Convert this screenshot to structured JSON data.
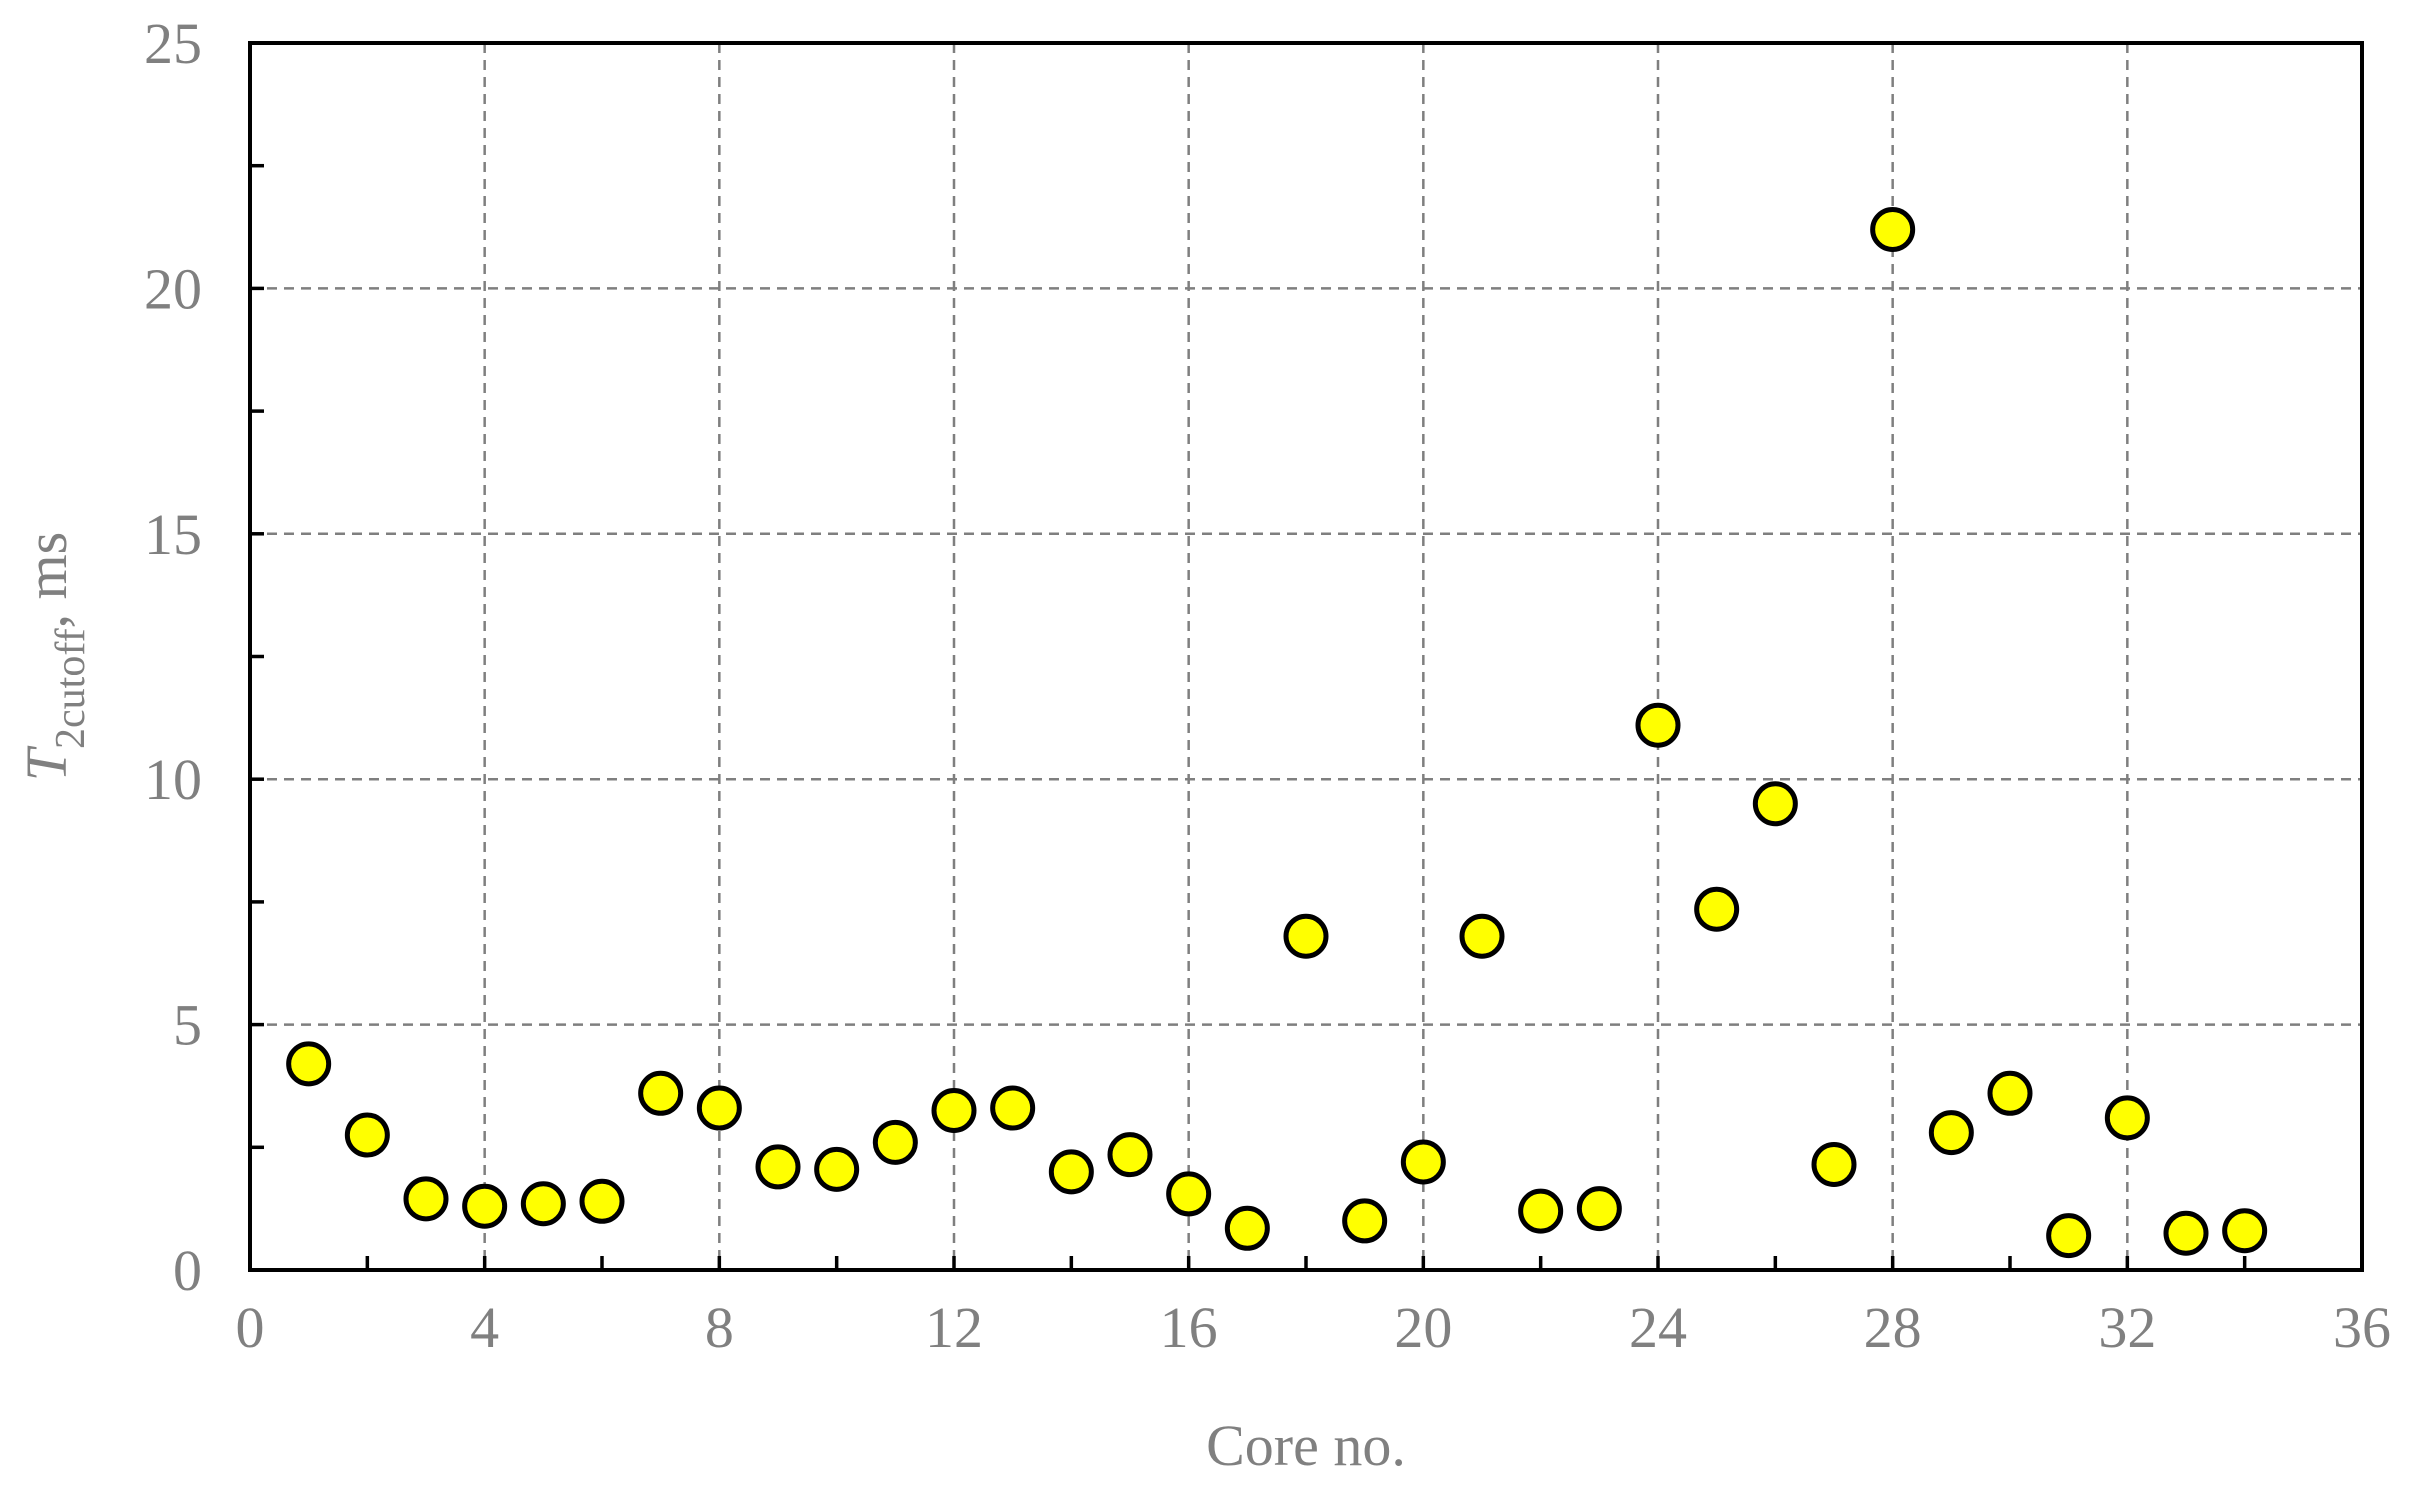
{
  "chart_data": {
    "type": "scatter",
    "title": "",
    "xlabel": "Core no.",
    "ylabel_main": "T",
    "ylabel_sub": "2cutoff",
    "ylabel_suffix": ", ms",
    "xlim": [
      0,
      36
    ],
    "ylim": [
      0,
      25
    ],
    "x_ticks": [
      0,
      4,
      8,
      12,
      16,
      20,
      24,
      28,
      32,
      36
    ],
    "x_minor_ticks": [
      2,
      6,
      10,
      14,
      18,
      22,
      26,
      30,
      34
    ],
    "y_ticks": [
      0,
      5,
      10,
      15,
      20,
      25
    ],
    "y_minor_ticks": [
      2.5,
      7.5,
      12.5,
      17.5,
      22.5
    ],
    "grid": true,
    "marker_color": "#FFFF00",
    "marker_edge_color": "#000000",
    "series": [
      {
        "x": [
          1,
          2,
          3,
          4,
          5,
          6,
          7,
          8,
          9,
          10,
          11,
          12,
          13,
          14,
          15,
          16,
          17,
          18,
          19,
          20,
          21,
          22,
          23,
          24,
          25,
          26,
          27,
          28,
          29,
          30,
          31,
          32,
          33,
          34
        ],
        "y": [
          4.2,
          2.75,
          1.45,
          1.3,
          1.35,
          1.4,
          3.6,
          3.3,
          2.1,
          2.05,
          2.6,
          3.25,
          3.3,
          2.0,
          2.35,
          1.55,
          0.85,
          6.8,
          1.0,
          2.2,
          6.8,
          1.2,
          1.25,
          11.1,
          7.35,
          9.5,
          2.15,
          21.2,
          2.8,
          3.6,
          0.7,
          3.1,
          0.75,
          0.8
        ]
      }
    ]
  }
}
